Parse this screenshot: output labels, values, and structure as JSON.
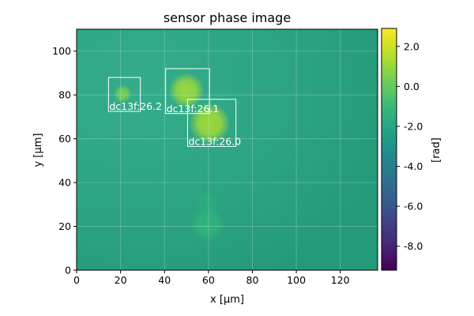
{
  "chart_data": {
    "type": "heatmap",
    "title": "sensor phase image",
    "xlabel": "x [µm]",
    "ylabel": "y [µm]",
    "xlim": [
      0,
      137
    ],
    "ylim": [
      0,
      110
    ],
    "xticks": [
      0,
      20,
      40,
      60,
      80,
      100,
      120
    ],
    "yticks": [
      0,
      20,
      40,
      60,
      80,
      100
    ],
    "grid": true,
    "colormap": "viridis",
    "colorbar": {
      "label": "[rad]",
      "range": [
        -9.2,
        2.9
      ],
      "ticks": [
        2.0,
        0.0,
        -2.0,
        -4.0,
        -6.0,
        -8.0
      ],
      "tick_labels": [
        "2.0",
        "0.0",
        "-2.0",
        "-4.0",
        "-6.0",
        "-8.0"
      ]
    },
    "background_level": -2.0,
    "features": [
      {
        "x": 21,
        "y": 80.5,
        "r": 3,
        "value": 0.3
      },
      {
        "x": 50,
        "y": 82,
        "r": 6,
        "value": 1.0
      },
      {
        "x": 60.5,
        "y": 67,
        "r": 7,
        "value": 1.1
      },
      {
        "x": 59.5,
        "y": 21,
        "r": 6,
        "value": -1.4
      },
      {
        "x": 59.5,
        "y": 31,
        "r": 4,
        "value": -1.7
      }
    ],
    "rois": [
      {
        "label": "dc13f:26.2",
        "x0": 14.5,
        "x1": 29,
        "y0": 72.5,
        "y1": 88
      },
      {
        "label": "dc13f:26.1",
        "x0": 40.5,
        "x1": 60.5,
        "y0": 71.5,
        "y1": 92
      },
      {
        "label": "dc13f:26.0",
        "x0": 50.5,
        "x1": 72.5,
        "y0": 56.5,
        "y1": 78
      }
    ]
  }
}
